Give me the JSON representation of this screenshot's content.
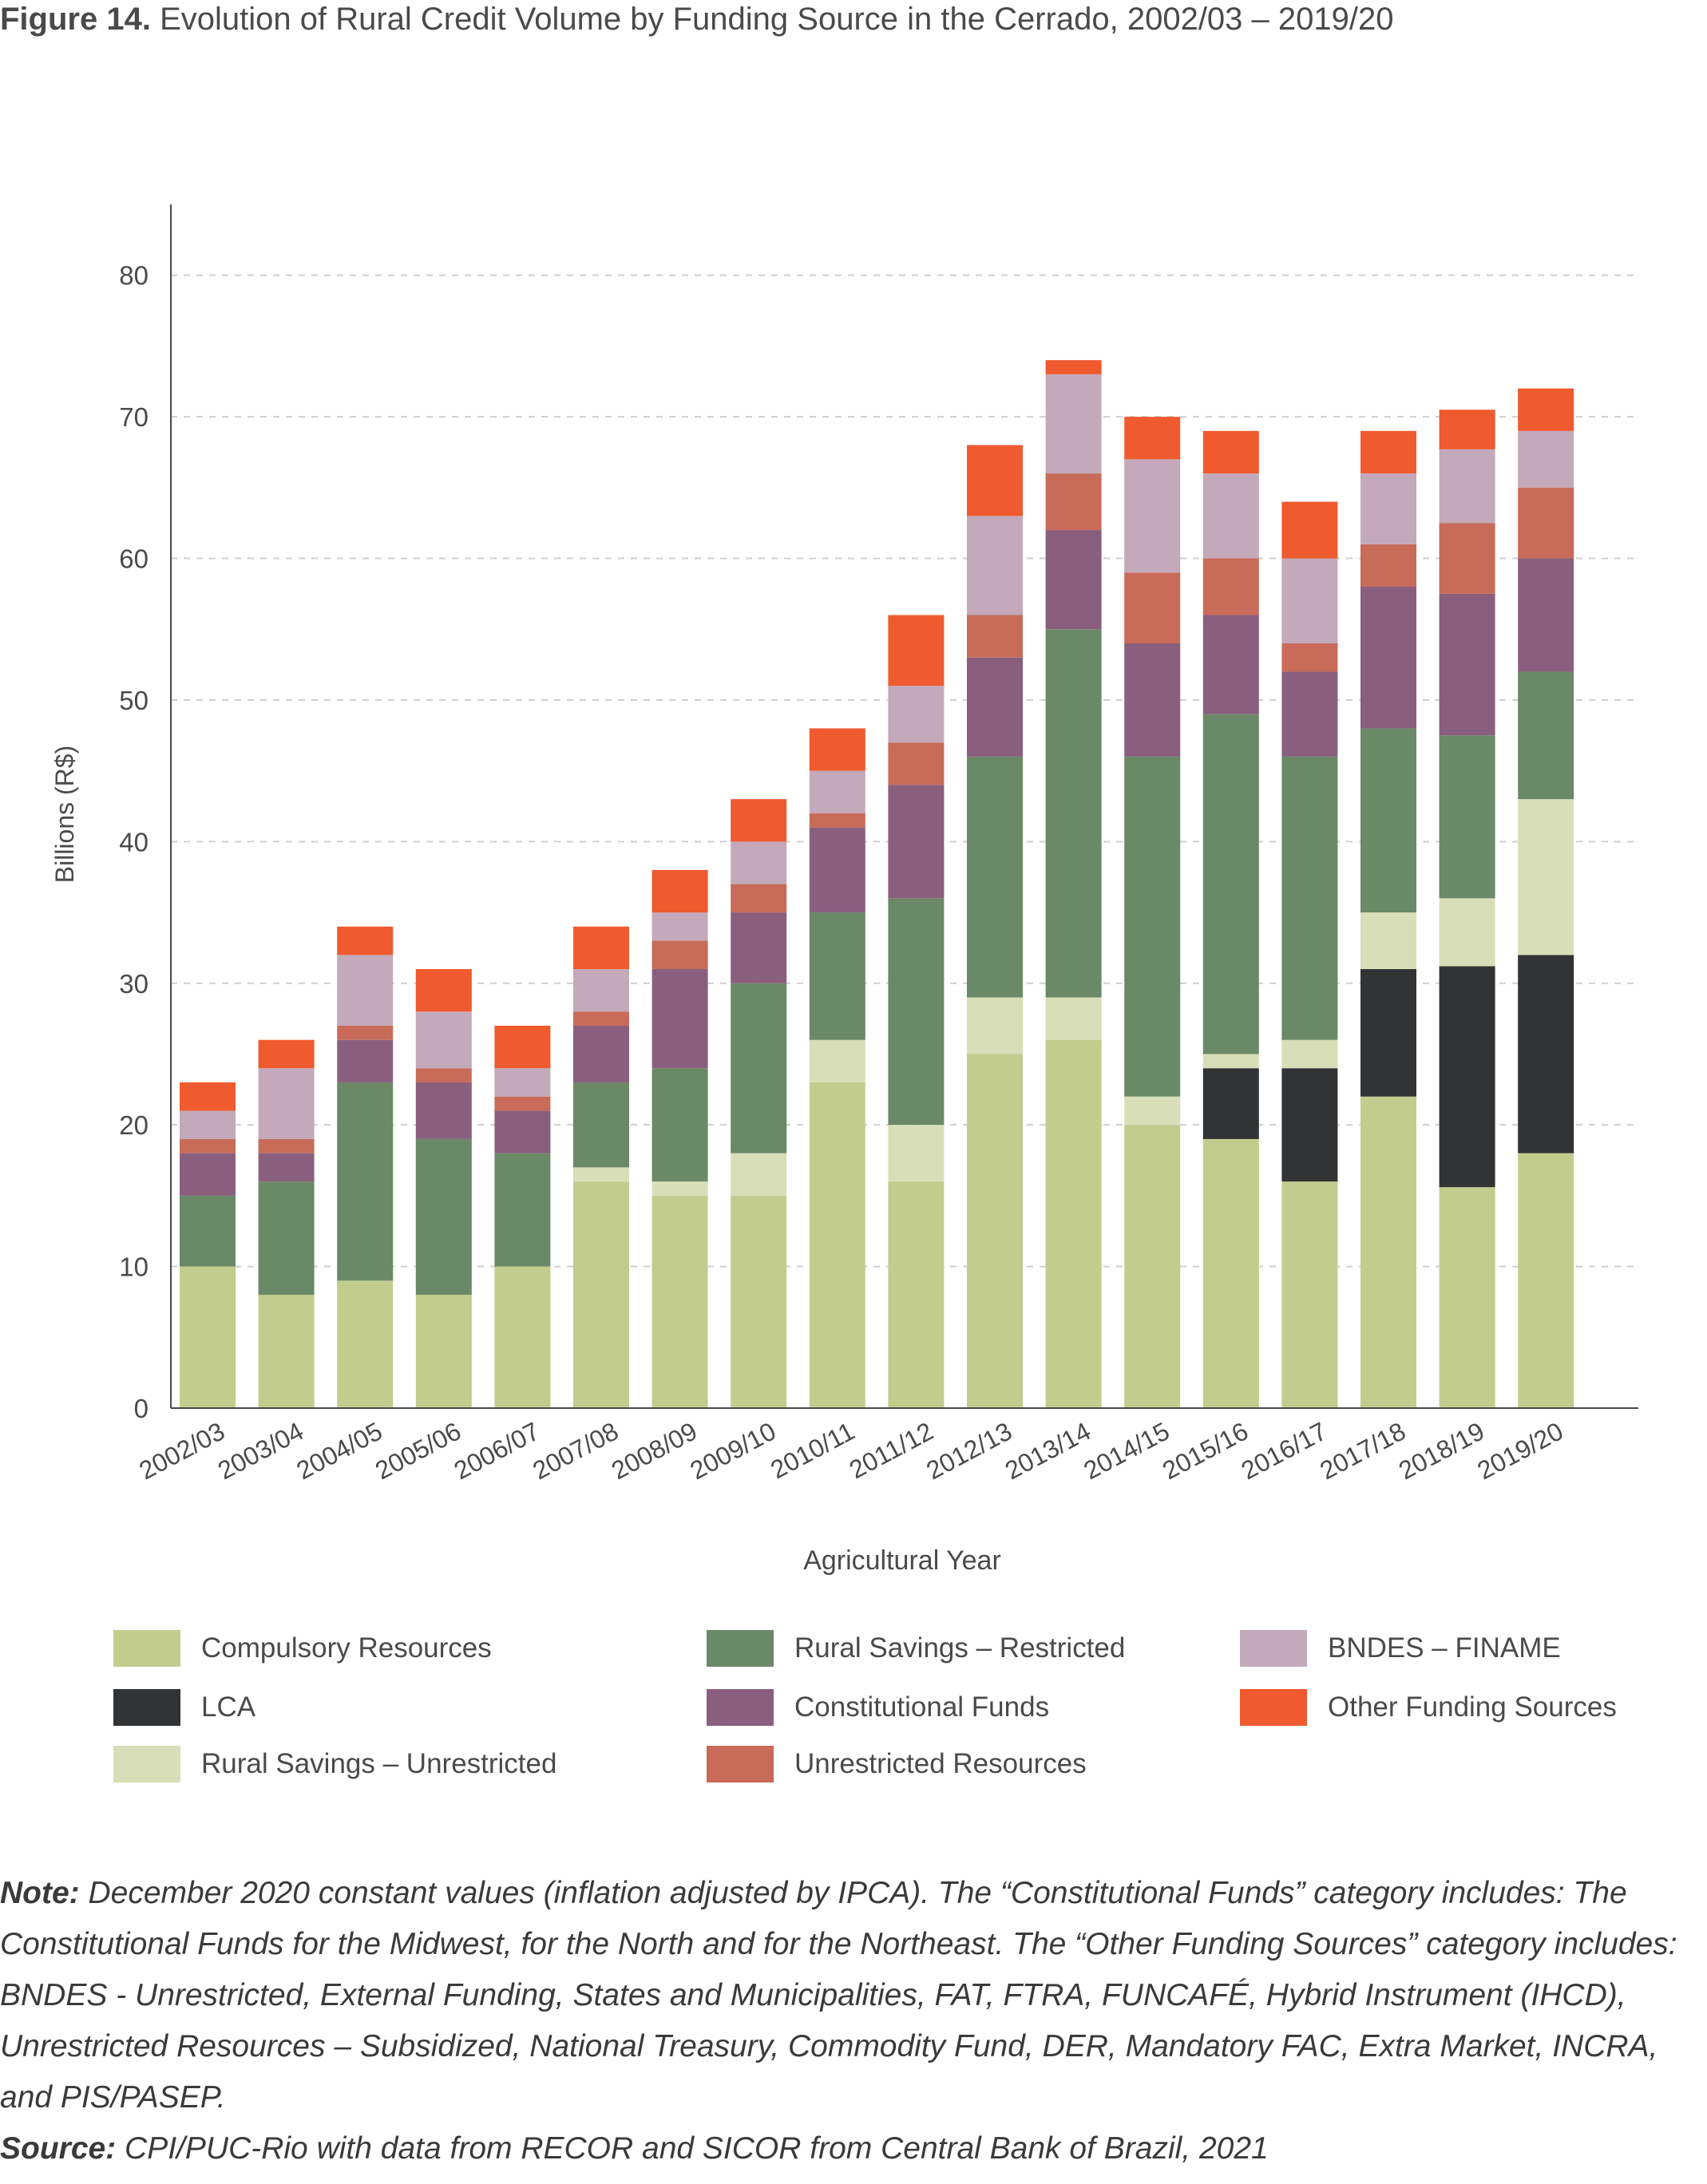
{
  "figure": {
    "label": "Figure 14.",
    "title": "Evolution of Rural Credit Volume by Funding Source in the Cerrado, 2002/03 – 2019/20"
  },
  "chart_data": {
    "type": "bar",
    "stacked": true,
    "xlabel": "Agricultural Year",
    "ylabel": "Billions (R$)",
    "ylim": [
      0,
      85
    ],
    "yticks": [
      0,
      10,
      20,
      30,
      40,
      50,
      60,
      70,
      80
    ],
    "grid": "horizontal dashed",
    "legend_position": "bottom",
    "categories": [
      "2002/03",
      "2003/04",
      "2004/05",
      "2005/06",
      "2006/07",
      "2007/08",
      "2008/09",
      "2009/10",
      "2010/11",
      "2011/12",
      "2012/13",
      "2013/14",
      "2014/15",
      "2015/16",
      "2016/17",
      "2017/18",
      "2018/19",
      "2019/20"
    ],
    "series": [
      {
        "name": "Compulsory Resources",
        "color": "#c2cd8d",
        "values": [
          10,
          8,
          9,
          8,
          10,
          16,
          15,
          15,
          23,
          16,
          25,
          26,
          20,
          19,
          16,
          22,
          15.6,
          18
        ]
      },
      {
        "name": "LCA",
        "color": "#323335",
        "values": [
          0,
          0,
          0,
          0,
          0,
          0,
          0,
          0,
          0,
          0,
          0,
          0,
          0,
          5,
          8,
          9,
          15.6,
          14
        ]
      },
      {
        "name": "Rural Savings – Unrestricted",
        "color": "#d8deb8",
        "values": [
          0,
          0,
          0,
          0,
          0,
          1,
          1,
          3,
          3,
          4,
          4,
          3,
          2,
          1,
          2,
          4,
          4.8,
          11
        ]
      },
      {
        "name": "Rural Savings – Restricted",
        "color": "#6a8966",
        "values": [
          5,
          8,
          14,
          11,
          8,
          6,
          8,
          12,
          9,
          16,
          17,
          26,
          24,
          24,
          20,
          13,
          11.5,
          9
        ]
      },
      {
        "name": "Constitutional Funds",
        "color": "#8a5f7e",
        "values": [
          3,
          2,
          3,
          4,
          3,
          4,
          7,
          5,
          6,
          8,
          7,
          7,
          8,
          7,
          6,
          10,
          10,
          8
        ]
      },
      {
        "name": "Unrestricted Resources",
        "color": "#c86b59",
        "values": [
          1,
          1,
          1,
          1,
          1,
          1,
          2,
          2,
          1,
          3,
          3,
          4,
          5,
          4,
          2,
          3,
          5,
          5
        ]
      },
      {
        "name": "BNDES – FINAME",
        "color": "#c3a9ba",
        "values": [
          2,
          5,
          5,
          4,
          2,
          3,
          2,
          3,
          3,
          4,
          7,
          7,
          8,
          6,
          6,
          5,
          5.2,
          4
        ]
      },
      {
        "name": "Other Funding Sources",
        "color": "#ef5a2e",
        "values": [
          2,
          2,
          2,
          3,
          3,
          3,
          3,
          3,
          3,
          5,
          5,
          1,
          3,
          3,
          4,
          3,
          2.8,
          3
        ]
      }
    ]
  },
  "legend": {
    "items": [
      {
        "label": "Compulsory Resources",
        "color": "#c2cd8d"
      },
      {
        "label": "LCA",
        "color": "#323335"
      },
      {
        "label": "Rural Savings – Unrestricted",
        "color": "#d8deb8"
      },
      {
        "label": "Rural Savings – Restricted",
        "color": "#6a8966"
      },
      {
        "label": "Constitutional Funds",
        "color": "#8a5f7e"
      },
      {
        "label": "Unrestricted Resources",
        "color": "#c86b59"
      },
      {
        "label": "BNDES – FINAME",
        "color": "#c3a9ba"
      },
      {
        "label": "Other Funding Sources",
        "color": "#ef5a2e"
      }
    ]
  },
  "note": {
    "note_label": "Note:",
    "note_text": " December 2020 constant values (inflation adjusted by IPCA). The “Constitutional Funds” category includes: The Constitutional Funds for the Midwest, for the North and for the Northeast. The “Other Funding Sources” category includes: BNDES - Unrestricted, External Funding, States and Municipalities, FAT, FTRA, FUNCAFÉ, Hybrid Instrument (IHCD), Unrestricted Resources – Subsidized, National Treasury, Commodity Fund, DER, Mandatory FAC, Extra Market, INCRA, and PIS/PASEP.",
    "source_label": "Source:",
    "source_text": " CPI/PUC-Rio with data from RECOR and SICOR from Central Bank of Brazil, 2021"
  }
}
